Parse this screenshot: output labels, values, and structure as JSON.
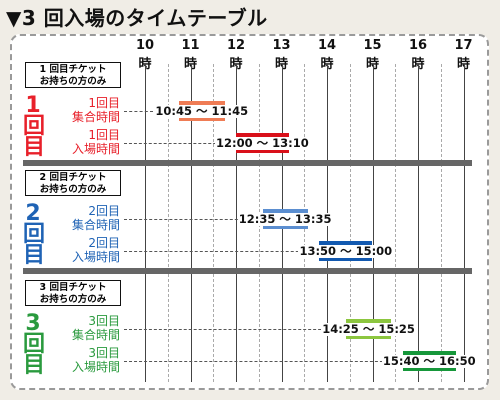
{
  "title": "▼3 回入場のタイムテーブル",
  "hours": [
    "10 時",
    "11 時",
    "12 時",
    "13 時",
    "14 時",
    "15 時",
    "16 時",
    "17 時"
  ],
  "sections": [
    {
      "ticket_line1": "1 回目チケット",
      "ticket_line2": "お持ちの方のみ",
      "round_digit": "1",
      "round_char1": "回",
      "round_char2": "目",
      "color": "#e8202a",
      "rows": [
        {
          "label_line1": "1回目",
          "label_line2": "集合時間",
          "range": "10:45 〜 11:45",
          "start": 10.75,
          "end": 11.75,
          "color": "#ef7c55"
        },
        {
          "label_line1": "1回目",
          "label_line2": "入場時間",
          "range": "12:00 〜 13:10",
          "start": 12.0,
          "end": 13.1667,
          "color": "#d9101a"
        }
      ]
    },
    {
      "ticket_line1": "2 回目チケット",
      "ticket_line2": "お持ちの方のみ",
      "round_digit": "2",
      "round_char1": "回",
      "round_char2": "目",
      "color": "#1f63b5",
      "rows": [
        {
          "label_line1": "2回目",
          "label_line2": "集合時間",
          "range": "12:35 〜 13:35",
          "start": 12.5833,
          "end": 13.5833,
          "color": "#5b8ed0"
        },
        {
          "label_line1": "2回目",
          "label_line2": "入場時間",
          "range": "13:50 〜 15:00",
          "start": 13.8333,
          "end": 15.0,
          "color": "#1259b0"
        }
      ]
    },
    {
      "ticket_line1": "3 回目チケット",
      "ticket_line2": "お持ちの方のみ",
      "round_digit": "3",
      "round_char1": "回",
      "round_char2": "目",
      "color": "#2a9a3e",
      "rows": [
        {
          "label_line1": "3回目",
          "label_line2": "集合時間",
          "range": "14:25 〜 15:25",
          "start": 14.4167,
          "end": 15.4167,
          "color": "#8cc63f"
        },
        {
          "label_line1": "3回目",
          "label_line2": "入場時間",
          "range": "15:40 〜 16:50",
          "start": 15.6667,
          "end": 16.8333,
          "color": "#16973a"
        }
      ]
    }
  ]
}
